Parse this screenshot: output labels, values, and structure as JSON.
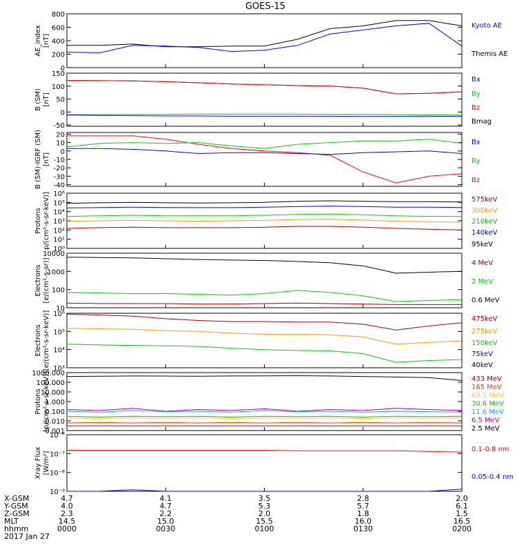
{
  "title": "GOES-15",
  "panels": [
    {
      "id": "ae",
      "ylabel": [
        "AE_index",
        "[nT]"
      ],
      "scale": "linear",
      "ylim": [
        0,
        800
      ],
      "ticks": [
        "0",
        "200",
        "400",
        "600",
        "800"
      ],
      "tick_values": [
        0,
        200,
        400,
        600,
        800
      ],
      "legend": [
        {
          "label": "Kyoto AE",
          "color": "#0000ff"
        },
        {
          "label": "Themis AE",
          "color": "#000000"
        }
      ]
    },
    {
      "id": "bsm",
      "ylabel": [
        "B (SM)",
        "[nT]"
      ],
      "scale": "linear",
      "ylim": [
        -55,
        150
      ],
      "ticks": [
        "-50",
        "0",
        "50",
        "100",
        "150"
      ],
      "tick_values": [
        -50,
        0,
        50,
        100,
        150
      ],
      "legend": [
        {
          "label": "Bx",
          "color": "#0000ff"
        },
        {
          "label": "By",
          "color": "#00cc00"
        },
        {
          "label": "Bz",
          "color": "#ff0000"
        },
        {
          "label": "Bmag",
          "color": "#000000"
        }
      ]
    },
    {
      "id": "bsm_igrf",
      "ylabel": [
        "B (SM)-IGRF (SM)",
        "[nT]"
      ],
      "scale": "linear",
      "ylim": [
        -42,
        22
      ],
      "ticks": [
        "-40",
        "-30",
        "-20",
        "-10",
        "0",
        "10",
        "20"
      ],
      "tick_values": [
        -40,
        -30,
        -20,
        -10,
        0,
        10,
        20
      ],
      "legend": [
        {
          "label": "Bx",
          "color": "#0000ff"
        },
        {
          "label": "By",
          "color": "#00cc00"
        },
        {
          "label": "Bz",
          "color": "#ff0000"
        }
      ]
    },
    {
      "id": "protons_lo",
      "ylabel": [
        "Protons",
        "p/(cm²-s-sr-keV)]"
      ],
      "scale": "log",
      "ylim": [
        1,
        1000000
      ],
      "ticks": [
        "10⁰",
        "10¹",
        "10²",
        "10³",
        "10⁴",
        "10⁵",
        "10⁶"
      ],
      "tick_values": [
        1,
        10,
        100,
        1000,
        10000,
        100000,
        1000000
      ],
      "legend": [
        {
          "label": "575keV",
          "color": "#aa0000"
        },
        {
          "label": "300keV",
          "color": "#ff9900"
        },
        {
          "label": "210keV",
          "color": "#00cc00"
        },
        {
          "label": "140keV",
          "color": "#0000ff"
        },
        {
          "label": "95keV",
          "color": "#000000"
        }
      ]
    },
    {
      "id": "electrons_mev",
      "ylabel": [
        "Electrons",
        "[e/(cm²-s-sr)]"
      ],
      "scale": "log",
      "ylim": [
        10,
        10000
      ],
      "ticks": [
        "10",
        "100",
        "1000",
        "10000"
      ],
      "tick_values": [
        10,
        100,
        1000,
        10000
      ],
      "legend": [
        {
          "label": "4 MeV",
          "color": "#aa0000"
        },
        {
          "label": "2 MeV",
          "color": "#00cc00"
        },
        {
          "label": "0.6 MeV",
          "color": "#000000"
        }
      ]
    },
    {
      "id": "electrons_kev",
      "ylabel": [
        "Electrons",
        "[e/(cm²-s-sr-keV)]"
      ],
      "scale": "log",
      "ylim": [
        1000,
        1000000
      ],
      "ticks": [
        "10³",
        "10⁴",
        "10⁵",
        "10⁶"
      ],
      "tick_values": [
        1000,
        10000,
        100000,
        1000000
      ],
      "legend": [
        {
          "label": "475keV",
          "color": "#aa0000"
        },
        {
          "label": "275keV",
          "color": "#ff9900"
        },
        {
          "label": "150keV",
          "color": "#00cc00"
        },
        {
          "label": "75keV",
          "color": "#0000ff"
        },
        {
          "label": "40keV",
          "color": "#000000"
        }
      ]
    },
    {
      "id": "protons_hi",
      "ylabel": [
        "Protons",
        "[p/(cm²-s-sr-keV)]"
      ],
      "scale": "log",
      "ylim": [
        0.001,
        1000
      ],
      "ticks": [
        "0.001",
        "0.010",
        "0.100",
        "1.000",
        "10.000",
        "100.000",
        "1000.000"
      ],
      "tick_values": [
        0.001,
        0.01,
        0.1,
        1,
        10,
        100,
        1000
      ],
      "legend": [
        {
          "label": "433 MeV",
          "color": "#aa0000"
        },
        {
          "label": "165 MeV",
          "color": "#ff3300"
        },
        {
          "label": "63.1 MeV",
          "color": "#ffcc00"
        },
        {
          "label": "30.6 MeV",
          "color": "#00cc00"
        },
        {
          "label": "11.6 MeV",
          "color": "#00aaff"
        },
        {
          "label": "6.5 MeV",
          "color": "#aa00aa"
        },
        {
          "label": "2.5 MeV",
          "color": "#000000"
        }
      ]
    },
    {
      "id": "xray",
      "ylabel": [
        "Xray Flux",
        "[W/m²]"
      ],
      "scale": "log",
      "ylim": [
        1e-09,
        1e-06
      ],
      "ticks": [
        "10⁻⁶",
        "10⁻⁷",
        "10⁻⁸",
        "10⁻⁹"
      ],
      "tick_values": [
        1e-06,
        1e-07,
        1e-08,
        1e-09
      ],
      "legend": [
        {
          "label": "0.1-0.8 nm",
          "color": "#ff0000"
        },
        {
          "label": "0.05-0.4 nm",
          "color": "#0000ff"
        }
      ]
    }
  ],
  "orbit_labels": [
    "X-GSM",
    "Y-GSM",
    "Z-GSM",
    "MLT",
    "hhmm",
    "2017 Jan 27"
  ],
  "orbit_columns": [
    {
      "values": [
        "4.7",
        "4.0",
        "2.3",
        "14.5",
        "0000"
      ]
    },
    {
      "values": [
        "4.1",
        "4.7",
        "2.2",
        "15.0",
        "0030"
      ]
    },
    {
      "values": [
        "3.5",
        "5.3",
        "2.0",
        "15.5",
        "0100"
      ]
    },
    {
      "values": [
        "2.8",
        "5.7",
        "1.8",
        "16.0",
        "0130"
      ]
    },
    {
      "values": [
        "2.0",
        "6.1",
        "1.5",
        "16.5",
        "0200"
      ]
    }
  ],
  "chart_data": {
    "type": "line",
    "title": "GOES-15",
    "x_unit": "hhmm",
    "x_range": [
      "0000",
      "0200"
    ],
    "x_ticks": [
      "0000",
      "0030",
      "0100",
      "0130",
      "0200"
    ],
    "x": [
      0,
      10,
      20,
      30,
      40,
      50,
      60,
      70,
      80,
      90,
      100,
      110,
      120
    ],
    "panels": [
      {
        "id": "ae",
        "series": [
          {
            "name": "Themis AE",
            "values": [
              330,
              330,
              350,
              310,
              310,
              320,
              320,
              420,
              580,
              620,
              700,
              700,
              620
            ]
          },
          {
            "name": "Kyoto AE",
            "values": [
              230,
              220,
              330,
              320,
              300,
              240,
              260,
              330,
              500,
              560,
              620,
              660,
              320
            ]
          }
        ]
      },
      {
        "id": "bsm",
        "series": [
          {
            "name": "Bmag",
            "values": [
              122,
              121,
              120,
              117,
              113,
              108,
              105,
              102,
              100,
              92,
              70,
              72,
              78
            ]
          },
          {
            "name": "Bz",
            "values": [
              122,
              121,
              120,
              117,
              113,
              108,
              105,
              102,
              100,
              92,
              70,
              72,
              78
            ]
          },
          {
            "name": "By",
            "values": [
              -10,
              -10,
              -9,
              -9,
              -8,
              -8,
              -8,
              -8,
              -9,
              -9,
              -10,
              -11,
              -12
            ]
          },
          {
            "name": "Bx",
            "values": [
              -12,
              -13,
              -14,
              -15,
              -15,
              -16,
              -16,
              -16,
              -16,
              -17,
              -17,
              -17,
              -16
            ]
          }
        ]
      },
      {
        "id": "bsm_igrf",
        "series": [
          {
            "name": "Bz",
            "values": [
              18,
              18,
              18,
              14,
              8,
              3,
              0,
              -2,
              -5,
              -25,
              -38,
              -30,
              -27
            ]
          },
          {
            "name": "By",
            "values": [
              5,
              9,
              10,
              9,
              10,
              6,
              3,
              8,
              10,
              12,
              12,
              14,
              9
            ]
          },
          {
            "name": "Bx",
            "values": [
              3,
              3,
              2,
              0,
              -3,
              -2,
              -2,
              -3,
              -4,
              -2,
              -1,
              0,
              -3
            ]
          }
        ]
      },
      {
        "id": "protons_lo",
        "series": [
          {
            "name": "95keV",
            "values": [
              80000,
              90000,
              100000,
              90000,
              85000,
              90000,
              100000,
              130000,
              150000,
              130000,
              120000,
              120000,
              110000
            ]
          },
          {
            "name": "140keV",
            "values": [
              25000,
              28000,
              30000,
              28000,
              27000,
              27000,
              30000,
              35000,
              40000,
              35000,
              30000,
              30000,
              28000
            ]
          },
          {
            "name": "210keV",
            "values": [
              3000,
              3500,
              4000,
              3500,
              3500,
              3500,
              4000,
              5000,
              5500,
              4500,
              3500,
              3000,
              3000
            ]
          },
          {
            "name": "300keV",
            "values": [
              900,
              1000,
              1100,
              1000,
              900,
              1000,
              1100,
              1400,
              1500,
              1200,
              900,
              800,
              700
            ]
          },
          {
            "name": "575keV",
            "values": [
              150,
              180,
              200,
              180,
              180,
              180,
              200,
              250,
              250,
              200,
              150,
              120,
              100
            ]
          }
        ]
      },
      {
        "id": "electrons_mev",
        "series": [
          {
            "name": "0.6 MeV",
            "values": [
              6000,
              5800,
              5500,
              5000,
              4500,
              4200,
              4000,
              3500,
              3000,
              2000,
              800,
              900,
              1000
            ]
          },
          {
            "name": "2 MeV",
            "values": [
              70,
              65,
              60,
              60,
              55,
              50,
              60,
              90,
              70,
              45,
              22,
              25,
              28
            ]
          },
          {
            "name": "4 MeV",
            "values": [
              18,
              17,
              17,
              17,
              16,
              16,
              17,
              18,
              17,
              16,
              15,
              15,
              15
            ]
          }
        ]
      },
      {
        "id": "electrons_kev",
        "series": [
          {
            "name": "475keV",
            "values": [
              900000,
              800000,
              700000,
              500000,
              400000,
              350000,
              350000,
              330000,
              330000,
              250000,
              120000,
              200000,
              300000
            ]
          },
          {
            "name": "275keV",
            "values": [
              150000,
              140000,
              130000,
              110000,
              100000,
              80000,
              70000,
              70000,
              65000,
              50000,
              20000,
              25000,
              30000
            ]
          },
          {
            "name": "150keV",
            "values": [
              20000,
              18000,
              17000,
              16000,
              15000,
              12000,
              10000,
              9000,
              8500,
              6000,
              2000,
              2500,
              2800
            ]
          }
        ]
      },
      {
        "id": "protons_hi",
        "series": [
          {
            "name": "2.5 MeV",
            "values": [
              400,
              420,
              450,
              440,
              420,
              450,
              460,
              480,
              450,
              400,
              350,
              300,
              150
            ]
          },
          {
            "name": "6.5 MeV",
            "values": [
              0.15,
              0.12,
              0.2,
              0.1,
              0.15,
              0.12,
              0.18,
              0.1,
              0.15,
              0.12,
              0.2,
              0.15,
              0.12
            ]
          },
          {
            "name": "11.6 MeV",
            "values": [
              0.1,
              0.08,
              0.12,
              0.09,
              0.1,
              0.08,
              0.12,
              0.09,
              0.1,
              0.08,
              0.1,
              0.09,
              0.08
            ]
          },
          {
            "name": "30.6 MeV",
            "values": [
              0.03,
              0.025,
              0.03,
              0.028,
              0.03,
              0.025,
              0.03,
              0.028,
              0.03,
              0.025,
              0.03,
              0.028,
              0.03
            ]
          },
          {
            "name": "63.1 MeV",
            "values": [
              0.02,
              0.018,
              0.02,
              0.019,
              0.02,
              0.018,
              0.02,
              0.019,
              0.02,
              0.018,
              0.02,
              0.019,
              0.02
            ]
          },
          {
            "name": "165 MeV",
            "values": [
              0.006,
              0.007,
              0.006,
              0.007,
              0.006,
              0.007,
              0.006,
              0.007,
              0.006,
              0.007,
              0.006,
              0.007,
              0.006
            ]
          },
          {
            "name": "433 MeV",
            "values": [
              0.003,
              0.003,
              0.003,
              0.003,
              0.003,
              0.003,
              0.003,
              0.003,
              0.003,
              0.003,
              0.003,
              0.003,
              0.003
            ]
          }
        ]
      },
      {
        "id": "xray",
        "series": [
          {
            "name": "0.1-0.8 nm",
            "values": [
              1.5e-07,
              1.5e-07,
              1.5e-07,
              1.5e-07,
              1.5e-07,
              1.5e-07,
              1.5e-07,
              1.4e-07,
              1.4e-07,
              1.4e-07,
              1.4e-07,
              1.3e-07,
              1.2e-07
            ]
          },
          {
            "name": "0.05-0.4 nm",
            "values": [
              1e-09,
              1e-09,
              1.2e-09,
              1e-09,
              1e-09,
              1e-09,
              1e-09,
              1e-09,
              1e-09,
              1e-09,
              1e-09,
              1e-09,
              1.3e-09
            ]
          }
        ]
      }
    ]
  }
}
